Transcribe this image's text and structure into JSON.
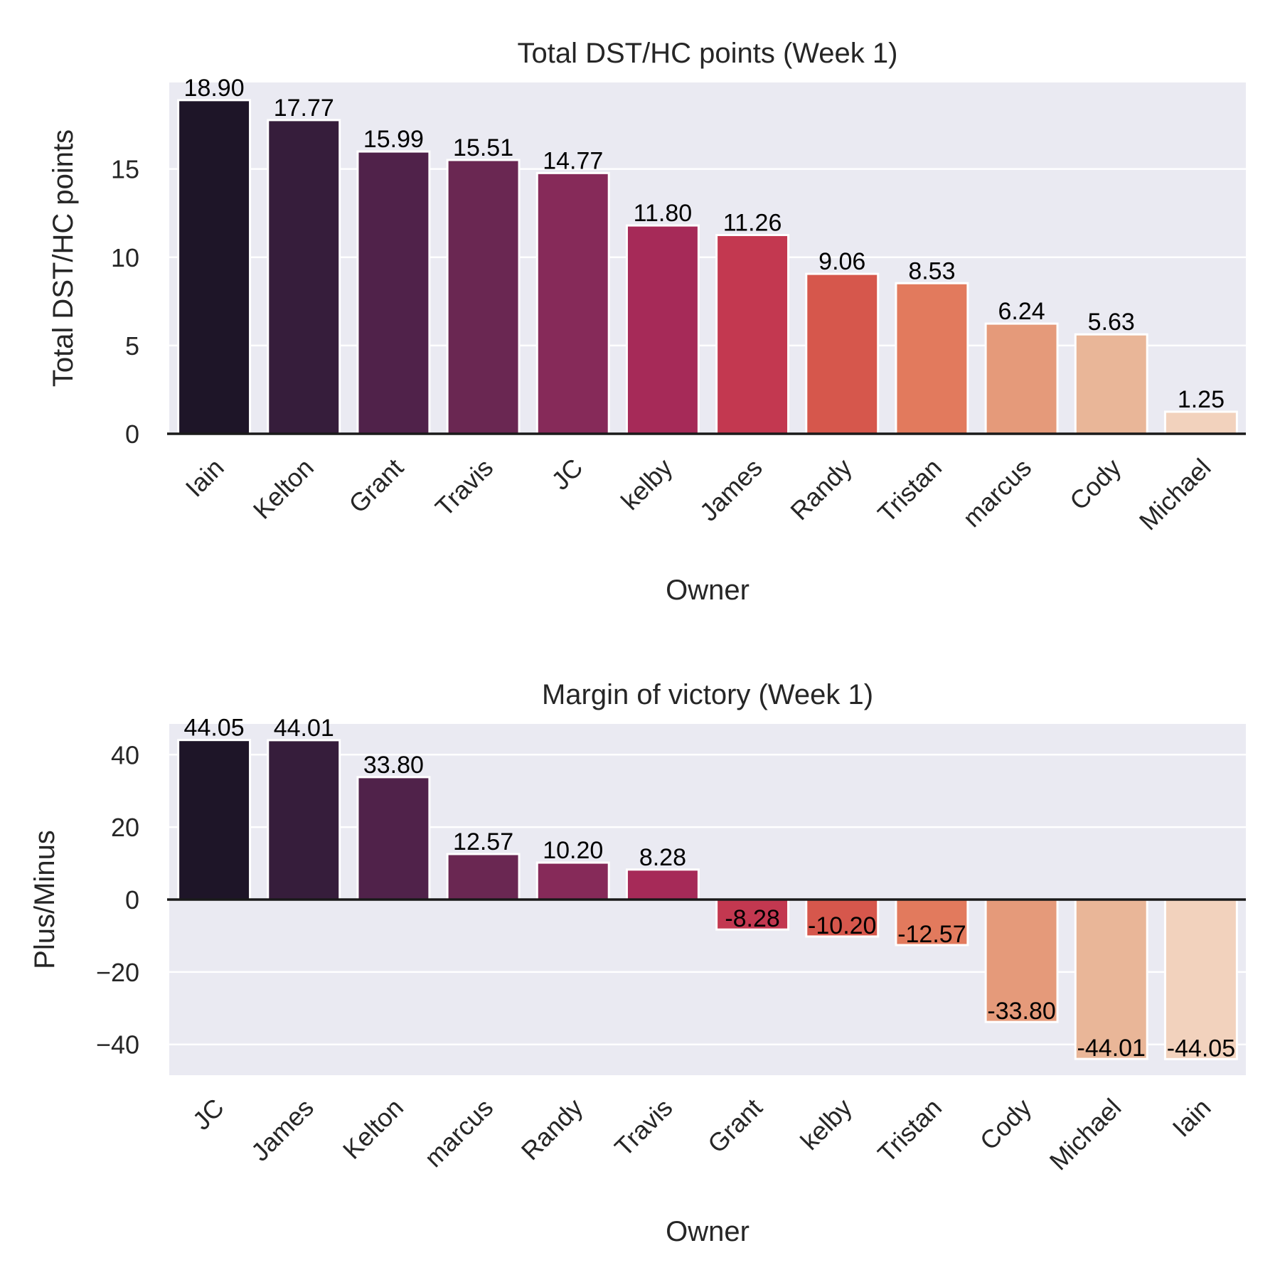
{
  "chart_data": [
    {
      "type": "bar",
      "title": "Total DST/HC points (Week 1)",
      "xlabel": "Owner",
      "ylabel": "Total DST/HC points",
      "categories": [
        "Iain",
        "Kelton",
        "Grant",
        "Travis",
        "JC",
        "kelby",
        "James",
        "Randy",
        "Tristan",
        "marcus",
        "Cody",
        "Michael"
      ],
      "values": [
        18.9,
        17.77,
        15.99,
        15.51,
        14.77,
        11.8,
        11.26,
        9.06,
        8.53,
        6.24,
        5.63,
        1.25
      ],
      "value_labels": [
        "18.90",
        "17.77",
        "15.99",
        "15.51",
        "14.77",
        "11.80",
        "11.26",
        "9.06",
        "8.53",
        "6.24",
        "5.63",
        "1.25"
      ],
      "ylim": [
        0,
        19.9
      ],
      "yticks": [
        0,
        5,
        10,
        15
      ],
      "ytick_labels": [
        "0",
        "5",
        "10",
        "15"
      ],
      "grid": true,
      "colors": [
        "#1e1528",
        "#361d3b",
        "#50224a",
        "#6a2752",
        "#862a59",
        "#a62a58",
        "#c33850",
        "#d6574c",
        "#e27a5d",
        "#e59a7a",
        "#e9b698",
        "#f2d2bd"
      ]
    },
    {
      "type": "bar",
      "title": "Margin of victory (Week 1)",
      "xlabel": "Owner",
      "ylabel": "Plus/Minus",
      "categories": [
        "JC",
        "James",
        "Kelton",
        "marcus",
        "Randy",
        "Travis",
        "Grant",
        "kelby",
        "Tristan",
        "Cody",
        "Michael",
        "Iain"
      ],
      "values": [
        44.05,
        44.01,
        33.8,
        12.57,
        10.2,
        8.28,
        -8.28,
        -10.2,
        -12.57,
        -33.8,
        -44.01,
        -44.05
      ],
      "value_labels": [
        "44.05",
        "44.01",
        "33.80",
        "12.57",
        "10.20",
        "8.28",
        "-8.28",
        "-10.20",
        "-12.57",
        "-33.80",
        "-44.01",
        "-44.05"
      ],
      "ylim": [
        -48.5,
        48.5
      ],
      "yticks": [
        -40,
        -20,
        0,
        20,
        40
      ],
      "ytick_labels": [
        "−40",
        "−20",
        "0",
        "20",
        "40"
      ],
      "grid": true,
      "colors": [
        "#1e1528",
        "#361d3b",
        "#50224a",
        "#6a2752",
        "#862a59",
        "#a62a58",
        "#c33850",
        "#d6574c",
        "#e27a5d",
        "#e59a7a",
        "#e9b698",
        "#f2d2bd"
      ]
    }
  ]
}
